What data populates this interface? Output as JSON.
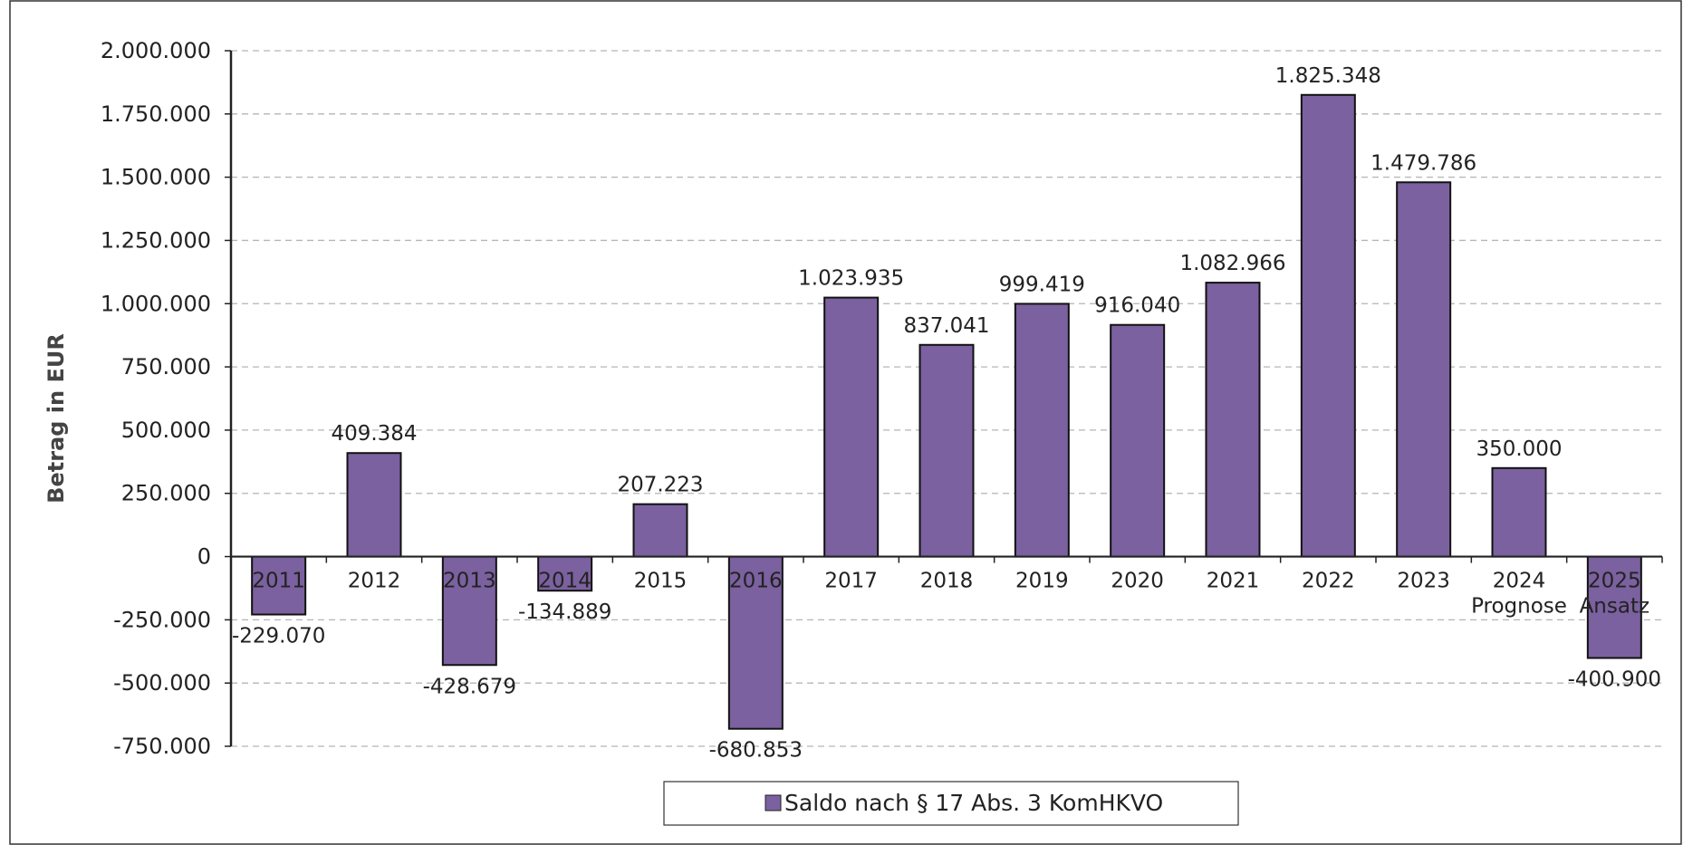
{
  "chart_data": {
    "type": "bar",
    "title": "",
    "xlabel": "",
    "ylabel": "Betrag in EUR",
    "ylim": [
      -750000,
      2000000
    ],
    "y_ticks": [
      "2.000.000",
      "1.750.000",
      "1.500.000",
      "1.250.000",
      "1.000.000",
      "750.000",
      "500.000",
      "250.000",
      "0",
      "-250.000",
      "-500.000",
      "-750.000"
    ],
    "y_tick_values": [
      2000000,
      1750000,
      1500000,
      1250000,
      1000000,
      750000,
      500000,
      250000,
      0,
      -250000,
      -500000,
      -750000
    ],
    "grid": true,
    "legend_position": "bottom-center",
    "categories": [
      {
        "year": "2011",
        "sub": ""
      },
      {
        "year": "2012",
        "sub": ""
      },
      {
        "year": "2013",
        "sub": ""
      },
      {
        "year": "2014",
        "sub": ""
      },
      {
        "year": "2015",
        "sub": ""
      },
      {
        "year": "2016",
        "sub": ""
      },
      {
        "year": "2017",
        "sub": ""
      },
      {
        "year": "2018",
        "sub": ""
      },
      {
        "year": "2019",
        "sub": ""
      },
      {
        "year": "2020",
        "sub": ""
      },
      {
        "year": "2021",
        "sub": ""
      },
      {
        "year": "2022",
        "sub": ""
      },
      {
        "year": "2023",
        "sub": ""
      },
      {
        "year": "2024",
        "sub": "Prognose"
      },
      {
        "year": "2025",
        "sub": "Ansatz"
      }
    ],
    "series": [
      {
        "name": "Saldo nach § 17 Abs. 3 KomHKVO",
        "color": "#7b619f",
        "values": [
          -229070,
          409384,
          -428679,
          -134889,
          207223,
          -680853,
          1023935,
          837041,
          999419,
          916040,
          1082966,
          1825348,
          1479786,
          350000,
          -400900
        ],
        "labels": [
          "-229.070",
          "409.384",
          "-428.679",
          "-134.889",
          "207.223",
          "-680.853",
          "1.023.935",
          "837.041",
          "999.419",
          "916.040",
          "1.082.966",
          "1.825.348",
          "1.479.786",
          "350.000",
          "-400.900"
        ]
      }
    ]
  }
}
